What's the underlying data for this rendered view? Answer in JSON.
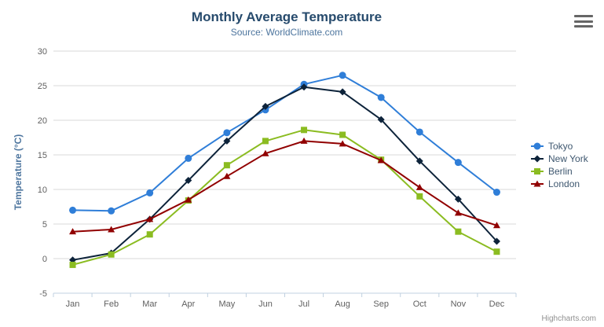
{
  "title": "Monthly Average Temperature",
  "subtitle": "Source: WorldClimate.com",
  "credit": "Highcharts.com",
  "export_menu": {
    "icon": "hamburger-icon"
  },
  "colors": {
    "title": "#274b6d",
    "subtitle": "#4d759e",
    "axis_title": "#4d759e",
    "tick_label": "#606060",
    "grid_line": "#d8d8d8",
    "axis_line": "#c0d0e0",
    "legend_text": "#3e576f",
    "credit_text": "#909090"
  },
  "chart_data": {
    "type": "line",
    "title": "Monthly Average Temperature",
    "subtitle": "Source: WorldClimate.com",
    "categories": [
      "Jan",
      "Feb",
      "Mar",
      "Apr",
      "May",
      "Jun",
      "Jul",
      "Aug",
      "Sep",
      "Oct",
      "Nov",
      "Dec"
    ],
    "series": [
      {
        "name": "Tokyo",
        "color": "#2f7ed8",
        "marker": "circle",
        "values": [
          7.0,
          6.9,
          9.5,
          14.5,
          18.2,
          21.5,
          25.2,
          26.5,
          23.3,
          18.3,
          13.9,
          9.6
        ]
      },
      {
        "name": "New York",
        "color": "#0d233a",
        "marker": "diamond",
        "values": [
          -0.2,
          0.8,
          5.7,
          11.3,
          17.0,
          22.0,
          24.8,
          24.1,
          20.1,
          14.1,
          8.6,
          2.5
        ]
      },
      {
        "name": "Berlin",
        "color": "#8bbc21",
        "marker": "square",
        "values": [
          -0.9,
          0.6,
          3.5,
          8.4,
          13.5,
          17.0,
          18.6,
          17.9,
          14.3,
          9.0,
          3.9,
          1.0
        ]
      },
      {
        "name": "London",
        "color": "#910000",
        "marker": "triangle",
        "values": [
          3.9,
          4.2,
          5.7,
          8.5,
          11.9,
          15.2,
          17.0,
          16.6,
          14.2,
          10.3,
          6.6,
          4.8
        ]
      }
    ],
    "xlabel": "",
    "ylabel": "Temperature (°C)",
    "ylim": [
      -5,
      30
    ],
    "ytick_step": 5,
    "yticks": [
      -5,
      0,
      5,
      10,
      15,
      20,
      25,
      30
    ],
    "grid": true,
    "legend_position": "right"
  }
}
